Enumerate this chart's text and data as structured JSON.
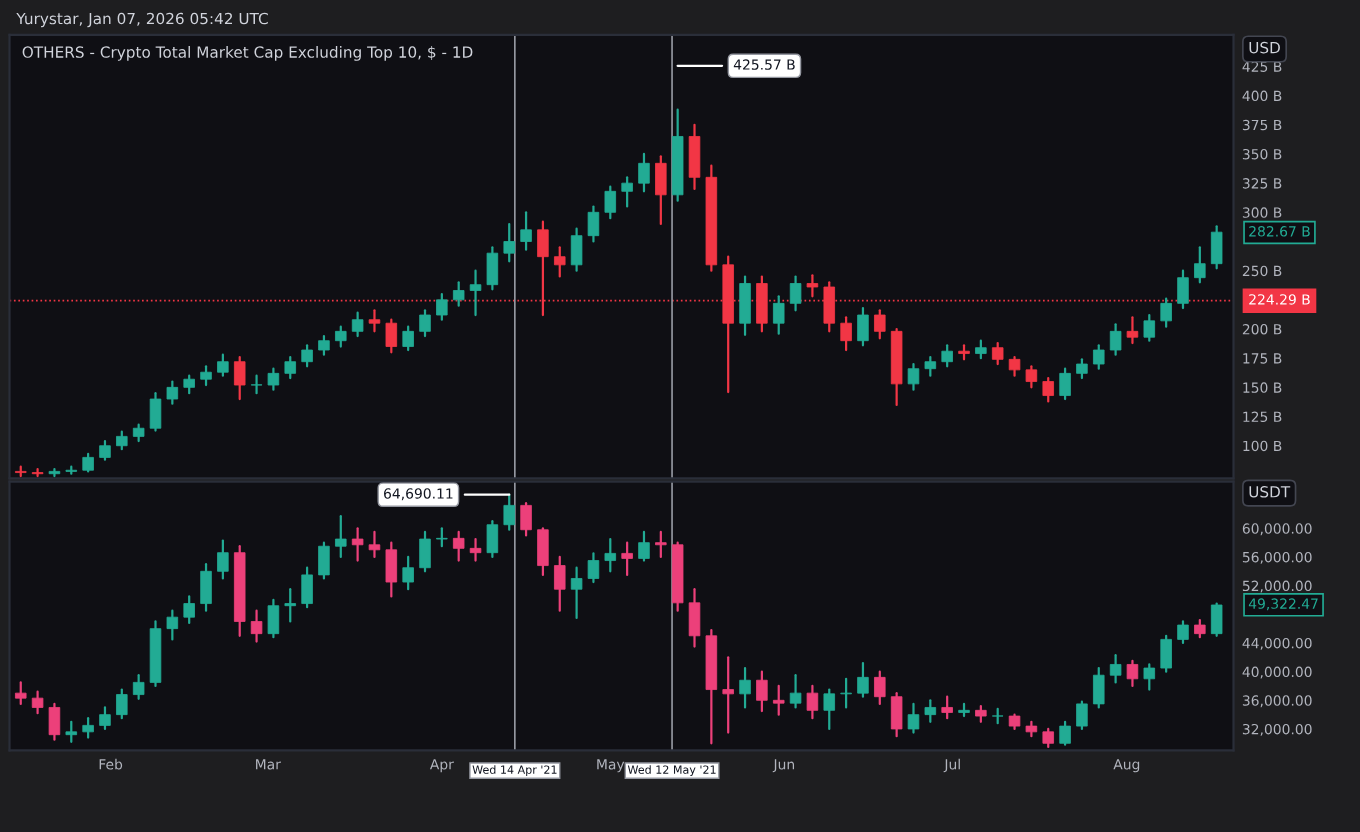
{
  "chart_data": [
    {
      "type": "candlestick",
      "title": "OTHERS - Crypto Total Market Cap Excluding Top 10, $ - 1D",
      "ylabel": "USD",
      "x": [
        "2021-01-16",
        "2021-01-19",
        "2021-01-22",
        "2021-01-25",
        "2021-01-28",
        "2021-01-31",
        "2021-02-03",
        "2021-02-06",
        "2021-02-09",
        "2021-02-12",
        "2021-02-15",
        "2021-02-18",
        "2021-02-21",
        "2021-02-24",
        "2021-02-27",
        "2021-03-02",
        "2021-03-05",
        "2021-03-08",
        "2021-03-11",
        "2021-03-14",
        "2021-03-17",
        "2021-03-20",
        "2021-03-23",
        "2021-03-26",
        "2021-03-29",
        "2021-04-01",
        "2021-04-04",
        "2021-04-07",
        "2021-04-10",
        "2021-04-13",
        "2021-04-16",
        "2021-04-19",
        "2021-04-22",
        "2021-04-25",
        "2021-04-28",
        "2021-05-01",
        "2021-05-04",
        "2021-05-07",
        "2021-05-10",
        "2021-05-13",
        "2021-05-16",
        "2021-05-19",
        "2021-05-22",
        "2021-05-25",
        "2021-05-28",
        "2021-05-31",
        "2021-06-03",
        "2021-06-06",
        "2021-06-09",
        "2021-06-12",
        "2021-06-15",
        "2021-06-18",
        "2021-06-21",
        "2021-06-24",
        "2021-06-27",
        "2021-06-30",
        "2021-07-03",
        "2021-07-06",
        "2021-07-09",
        "2021-07-12",
        "2021-07-15",
        "2021-07-18",
        "2021-07-21",
        "2021-07-24",
        "2021-07-27",
        "2021-07-30",
        "2021-08-02",
        "2021-08-05",
        "2021-08-08",
        "2021-08-11",
        "2021-08-14",
        "2021-08-17"
      ],
      "ohlc": [
        [
          78,
          82,
          74,
          77
        ],
        [
          77,
          80,
          74,
          76
        ],
        [
          76,
          80,
          74,
          78
        ],
        [
          78,
          82,
          76,
          79
        ],
        [
          79,
          93,
          78,
          90
        ],
        [
          90,
          104,
          88,
          100
        ],
        [
          100,
          112,
          97,
          108
        ],
        [
          108,
          118,
          104,
          115
        ],
        [
          115,
          145,
          113,
          140
        ],
        [
          140,
          155,
          136,
          150
        ],
        [
          150,
          160,
          145,
          157
        ],
        [
          157,
          168,
          152,
          163
        ],
        [
          163,
          178,
          160,
          172
        ],
        [
          172,
          176,
          140,
          152
        ],
        [
          152,
          160,
          145,
          152
        ],
        [
          152,
          166,
          148,
          162
        ],
        [
          162,
          176,
          158,
          172
        ],
        [
          172,
          186,
          168,
          182
        ],
        [
          182,
          194,
          178,
          190
        ],
        [
          190,
          202,
          185,
          198
        ],
        [
          198,
          214,
          194,
          208
        ],
        [
          208,
          216,
          198,
          205
        ],
        [
          205,
          208,
          180,
          185
        ],
        [
          185,
          202,
          182,
          198
        ],
        [
          198,
          216,
          194,
          212
        ],
        [
          212,
          230,
          208,
          225
        ],
        [
          225,
          240,
          220,
          233
        ],
        [
          233,
          250,
          212,
          238
        ],
        [
          238,
          270,
          234,
          265
        ],
        [
          265,
          290,
          258,
          275
        ],
        [
          275,
          300,
          268,
          285
        ],
        [
          285,
          292,
          212,
          262
        ],
        [
          262,
          270,
          245,
          255
        ],
        [
          255,
          286,
          250,
          280
        ],
        [
          280,
          305,
          275,
          300
        ],
        [
          300,
          322,
          295,
          318
        ],
        [
          318,
          330,
          305,
          325
        ],
        [
          325,
          350,
          318,
          342
        ],
        [
          342,
          348,
          290,
          315
        ],
        [
          315,
          388,
          310,
          365
        ],
        [
          365,
          375,
          320,
          330
        ],
        [
          330,
          340,
          250,
          255
        ],
        [
          255,
          262,
          146,
          205
        ],
        [
          205,
          245,
          195,
          239
        ],
        [
          239,
          245,
          198,
          205
        ],
        [
          205,
          228,
          196,
          222
        ],
        [
          222,
          245,
          216,
          239
        ],
        [
          239,
          246,
          228,
          236
        ],
        [
          236,
          240,
          198,
          205
        ],
        [
          205,
          210,
          182,
          190
        ],
        [
          190,
          218,
          186,
          212
        ],
        [
          212,
          216,
          192,
          198
        ],
        [
          198,
          200,
          135,
          153
        ],
        [
          153,
          170,
          148,
          166
        ],
        [
          166,
          176,
          160,
          172
        ],
        [
          172,
          186,
          168,
          181
        ],
        [
          181,
          186,
          174,
          179
        ],
        [
          179,
          190,
          175,
          184
        ],
        [
          184,
          188,
          170,
          174
        ],
        [
          174,
          176,
          160,
          165
        ],
        [
          165,
          168,
          150,
          155
        ],
        [
          155,
          158,
          138,
          143
        ],
        [
          143,
          166,
          140,
          162
        ],
        [
          162,
          174,
          158,
          170
        ],
        [
          170,
          186,
          166,
          182
        ],
        [
          182,
          204,
          178,
          198
        ],
        [
          198,
          210,
          188,
          193
        ],
        [
          193,
          212,
          190,
          207
        ],
        [
          207,
          226,
          202,
          222
        ],
        [
          222,
          250,
          218,
          244
        ],
        [
          244,
          270,
          240,
          256
        ],
        [
          256,
          288,
          252,
          283
        ]
      ],
      "xlim": [
        "2021-01-14",
        "2021-08-20"
      ],
      "ylim": [
        72,
        452
      ],
      "yticks": [
        {
          "value": 100,
          "label": "100 B"
        },
        {
          "value": 125,
          "label": "125 B"
        },
        {
          "value": 150,
          "label": "150 B"
        },
        {
          "value": 175,
          "label": "175 B"
        },
        {
          "value": 200,
          "label": "200 B"
        },
        {
          "value": 250,
          "label": "250 B"
        },
        {
          "value": 300,
          "label": "300 B"
        },
        {
          "value": 325,
          "label": "325 B"
        },
        {
          "value": 350,
          "label": "350 B"
        },
        {
          "value": 375,
          "label": "375 B"
        },
        {
          "value": 400,
          "label": "400 B"
        },
        {
          "value": 425,
          "label": "425 B"
        }
      ],
      "tick_labels": "y",
      "ref_lines": [
        {
          "axis": "y",
          "value": 224.29,
          "label": "224.29 B",
          "color": "#f23645",
          "line_style": "dotted"
        },
        {
          "axis": "x",
          "value": "2021-04-14",
          "label": null,
          "color": "#9598a1",
          "line_style": "solid"
        },
        {
          "axis": "x",
          "value": "2021-05-12",
          "label": null,
          "color": "#9598a1",
          "line_style": "solid"
        }
      ],
      "annotations": [
        "Yurystar, Jan 07, 2026 05:42 UTC",
        {
          "text": "425.57 B",
          "x": "2021-05-12",
          "y": 425.57
        },
        {
          "text": "282.67 B",
          "x": "2021-08-17",
          "y": 282.67
        }
      ]
    },
    {
      "type": "candlestick",
      "ylabel": "USDT",
      "x": [
        "2021-01-16",
        "2021-01-19",
        "2021-01-22",
        "2021-01-25",
        "2021-01-28",
        "2021-01-31",
        "2021-02-03",
        "2021-02-06",
        "2021-02-09",
        "2021-02-12",
        "2021-02-15",
        "2021-02-18",
        "2021-02-21",
        "2021-02-24",
        "2021-02-27",
        "2021-03-02",
        "2021-03-05",
        "2021-03-08",
        "2021-03-11",
        "2021-03-14",
        "2021-03-17",
        "2021-03-20",
        "2021-03-23",
        "2021-03-26",
        "2021-03-29",
        "2021-04-01",
        "2021-04-04",
        "2021-04-07",
        "2021-04-10",
        "2021-04-13",
        "2021-04-16",
        "2021-04-19",
        "2021-04-22",
        "2021-04-25",
        "2021-04-28",
        "2021-05-01",
        "2021-05-04",
        "2021-05-07",
        "2021-05-10",
        "2021-05-13",
        "2021-05-16",
        "2021-05-19",
        "2021-05-22",
        "2021-05-25",
        "2021-05-28",
        "2021-05-31",
        "2021-06-03",
        "2021-06-06",
        "2021-06-09",
        "2021-06-12",
        "2021-06-15",
        "2021-06-18",
        "2021-06-21",
        "2021-06-24",
        "2021-06-27",
        "2021-06-30",
        "2021-07-03",
        "2021-07-06",
        "2021-07-09",
        "2021-07-12",
        "2021-07-15",
        "2021-07-18",
        "2021-07-21",
        "2021-07-24",
        "2021-07-27",
        "2021-07-30",
        "2021-08-02",
        "2021-08-05",
        "2021-08-08",
        "2021-08-11",
        "2021-08-14",
        "2021-08-17"
      ],
      "ohlc": [
        [
          37000,
          38500,
          35500,
          36300
        ],
        [
          36300,
          37200,
          34200,
          35000
        ],
        [
          35000,
          35500,
          30500,
          31200
        ],
        [
          31200,
          33000,
          30200,
          31600
        ],
        [
          31600,
          33500,
          30800,
          32500
        ],
        [
          32500,
          35000,
          32000,
          34000
        ],
        [
          34000,
          37500,
          33500,
          36800
        ],
        [
          36800,
          39500,
          36200,
          38500
        ],
        [
          38500,
          47000,
          38000,
          46000
        ],
        [
          46000,
          48500,
          44500,
          47600
        ],
        [
          47600,
          50500,
          46800,
          49500
        ],
        [
          49500,
          55000,
          48500,
          54000
        ],
        [
          54000,
          58300,
          53000,
          56600
        ],
        [
          56600,
          57500,
          45000,
          47000
        ],
        [
          47000,
          48500,
          44200,
          45300
        ],
        [
          45300,
          50000,
          44800,
          49200
        ],
        [
          49200,
          51500,
          47000,
          49500
        ],
        [
          49500,
          54500,
          49000,
          53500
        ],
        [
          53500,
          58000,
          53000,
          57500
        ],
        [
          57500,
          61700,
          56000,
          58500
        ],
        [
          58500,
          60000,
          55500,
          57700
        ],
        [
          57700,
          59500,
          56000,
          57000
        ],
        [
          57000,
          58000,
          50500,
          52500
        ],
        [
          52500,
          56000,
          51500,
          54500
        ],
        [
          54500,
          59500,
          54000,
          58500
        ],
        [
          58500,
          60000,
          57500,
          58600
        ],
        [
          58600,
          59500,
          55500,
          57200
        ],
        [
          57200,
          58500,
          55500,
          56600
        ],
        [
          56600,
          61000,
          56000,
          60500
        ],
        [
          60500,
          64690.11,
          59800,
          63200
        ],
        [
          63200,
          63500,
          59000,
          59800
        ],
        [
          59800,
          60000,
          53500,
          54800
        ],
        [
          54800,
          56000,
          48500,
          51500
        ],
        [
          51500,
          54500,
          47500,
          53000
        ],
        [
          53000,
          56500,
          52500,
          55500
        ],
        [
          55500,
          58500,
          54000,
          56500
        ],
        [
          56500,
          58000,
          53500,
          55800
        ],
        [
          55800,
          59500,
          55500,
          58000
        ],
        [
          58000,
          59500,
          56000,
          57700
        ],
        [
          57700,
          58000,
          48500,
          49600
        ],
        [
          49600,
          51500,
          43500,
          45000
        ],
        [
          45000,
          45800,
          30000,
          37500
        ],
        [
          37500,
          42000,
          31500,
          36900
        ],
        [
          36900,
          40500,
          35000,
          38800
        ],
        [
          38800,
          40000,
          34500,
          36000
        ],
        [
          36000,
          38000,
          34000,
          35600
        ],
        [
          35600,
          39500,
          35000,
          37000
        ],
        [
          37000,
          38000,
          33500,
          34600
        ],
        [
          34600,
          37500,
          32000,
          36900
        ],
        [
          36900,
          39000,
          35000,
          37000
        ],
        [
          37000,
          41200,
          36500,
          39200
        ],
        [
          39200,
          40000,
          35500,
          36500
        ],
        [
          36500,
          37000,
          31000,
          32000
        ],
        [
          32000,
          35500,
          31500,
          34000
        ],
        [
          34000,
          36000,
          33000,
          35000
        ],
        [
          35000,
          36500,
          33500,
          34300
        ],
        [
          34300,
          35500,
          33800,
          34600
        ],
        [
          34600,
          35200,
          33000,
          33800
        ],
        [
          33800,
          34800,
          32800,
          33800
        ],
        [
          33800,
          34000,
          32000,
          32400
        ],
        [
          32400,
          33000,
          31000,
          31600
        ],
        [
          31600,
          32000,
          29500,
          30000
        ],
        [
          30000,
          33000,
          29800,
          32400
        ],
        [
          32400,
          35800,
          32000,
          35500
        ],
        [
          35500,
          40500,
          35000,
          39500
        ],
        [
          39500,
          42300,
          38500,
          41000
        ],
        [
          41000,
          41500,
          38000,
          39000
        ],
        [
          39000,
          41000,
          37500,
          40500
        ],
        [
          40500,
          45000,
          40000,
          44500
        ],
        [
          44500,
          47000,
          44000,
          46500
        ],
        [
          46500,
          47200,
          44800,
          45300
        ],
        [
          45300,
          49500,
          45000,
          49300
        ]
      ],
      "xlim": [
        "2021-01-14",
        "2021-08-20"
      ],
      "ylim": [
        29000,
        66500
      ],
      "xticks": [
        {
          "value": "2021-02-01",
          "label": "Feb"
        },
        {
          "value": "2021-03-01",
          "label": "Mar"
        },
        {
          "value": "2021-04-01",
          "label": "Apr"
        },
        {
          "value": "2021-05-01",
          "label": "May"
        },
        {
          "value": "2021-06-01",
          "label": "Jun"
        },
        {
          "value": "2021-07-01",
          "label": "Jul"
        },
        {
          "value": "2021-08-01",
          "label": "Aug"
        }
      ],
      "yticks": [
        {
          "value": 32000,
          "label": "32,000.00"
        },
        {
          "value": 36000,
          "label": "36,000.00"
        },
        {
          "value": 40000,
          "label": "40,000.00"
        },
        {
          "value": 44000,
          "label": "44,000.00"
        },
        {
          "value": 52000,
          "label": "52,000.00"
        },
        {
          "value": 56000,
          "label": "56,000.00"
        },
        {
          "value": 60000,
          "label": "60,000.00"
        }
      ],
      "ref_lines": [
        {
          "axis": "x",
          "value": "2021-04-14",
          "label": "Wed 14 Apr '21",
          "color": "#9598a1",
          "line_style": "solid"
        },
        {
          "axis": "x",
          "value": "2021-05-12",
          "label": "Wed 12 May '21",
          "color": "#9598a1",
          "line_style": "solid"
        }
      ],
      "annotations": [
        {
          "text": "64,690.11",
          "x": "2021-04-14",
          "y": 64690.11
        },
        {
          "text": "49,322.47",
          "x": "2021-08-17",
          "y": 49322.47
        }
      ]
    }
  ]
}
